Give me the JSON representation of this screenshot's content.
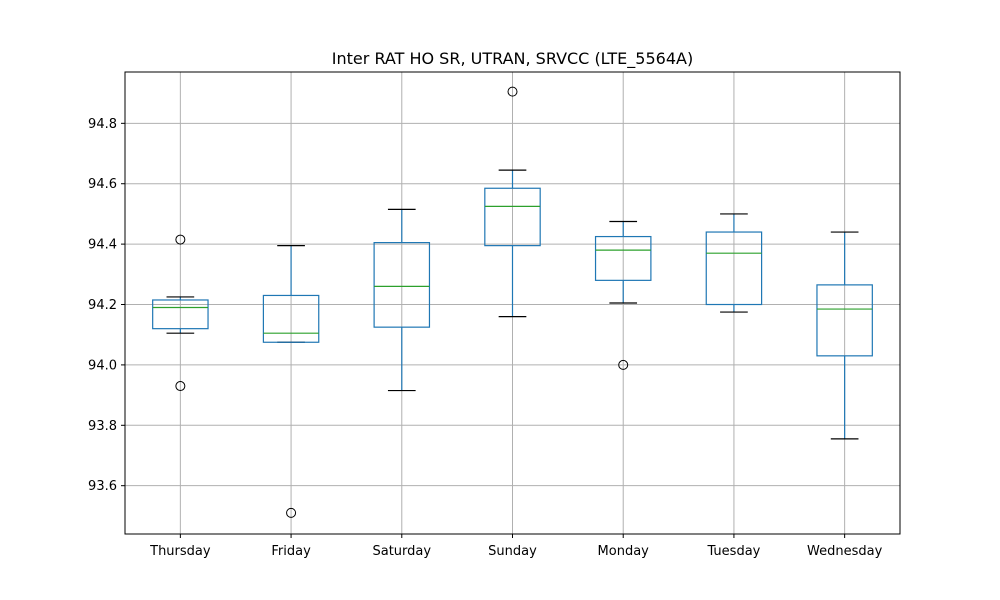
{
  "chart_data": {
    "type": "box",
    "title": "Inter RAT HO SR, UTRAN, SRVCC (LTE_5564A)",
    "xlabel": "",
    "ylabel": "",
    "ylim": [
      93.44,
      94.97
    ],
    "yticks": [
      "93.6",
      "93.8",
      "94.0",
      "94.2",
      "94.4",
      "94.6",
      "94.8"
    ],
    "grid": true,
    "colors": {
      "box": "#1f77b4",
      "median": "#2ca02c",
      "whisker_cap": "#000000",
      "grid": "#b0b0b0",
      "outlier": "#000000"
    },
    "categories": [
      "Thursday",
      "Friday",
      "Saturday",
      "Sunday",
      "Monday",
      "Tuesday",
      "Wednesday"
    ],
    "boxes": [
      {
        "label": "Thursday",
        "whislo": 94.105,
        "q1": 94.12,
        "med": 94.19,
        "q3": 94.215,
        "whishi": 94.225,
        "fliers": [
          93.93,
          94.415
        ]
      },
      {
        "label": "Friday",
        "whislo": 94.075,
        "q1": 94.075,
        "med": 94.105,
        "q3": 94.23,
        "whishi": 94.395,
        "fliers": [
          93.51
        ]
      },
      {
        "label": "Saturday",
        "whislo": 93.915,
        "q1": 94.125,
        "med": 94.26,
        "q3": 94.405,
        "whishi": 94.515,
        "fliers": []
      },
      {
        "label": "Sunday",
        "whislo": 94.16,
        "q1": 94.395,
        "med": 94.525,
        "q3": 94.585,
        "whishi": 94.645,
        "fliers": [
          94.905
        ]
      },
      {
        "label": "Monday",
        "whislo": 94.205,
        "q1": 94.28,
        "med": 94.38,
        "q3": 94.425,
        "whishi": 94.475,
        "fliers": [
          94.0
        ]
      },
      {
        "label": "Tuesday",
        "whislo": 94.175,
        "q1": 94.2,
        "med": 94.37,
        "q3": 94.44,
        "whishi": 94.5,
        "fliers": []
      },
      {
        "label": "Wednesday",
        "whislo": 93.755,
        "q1": 94.03,
        "med": 94.185,
        "q3": 94.265,
        "whishi": 94.44,
        "fliers": []
      }
    ]
  }
}
